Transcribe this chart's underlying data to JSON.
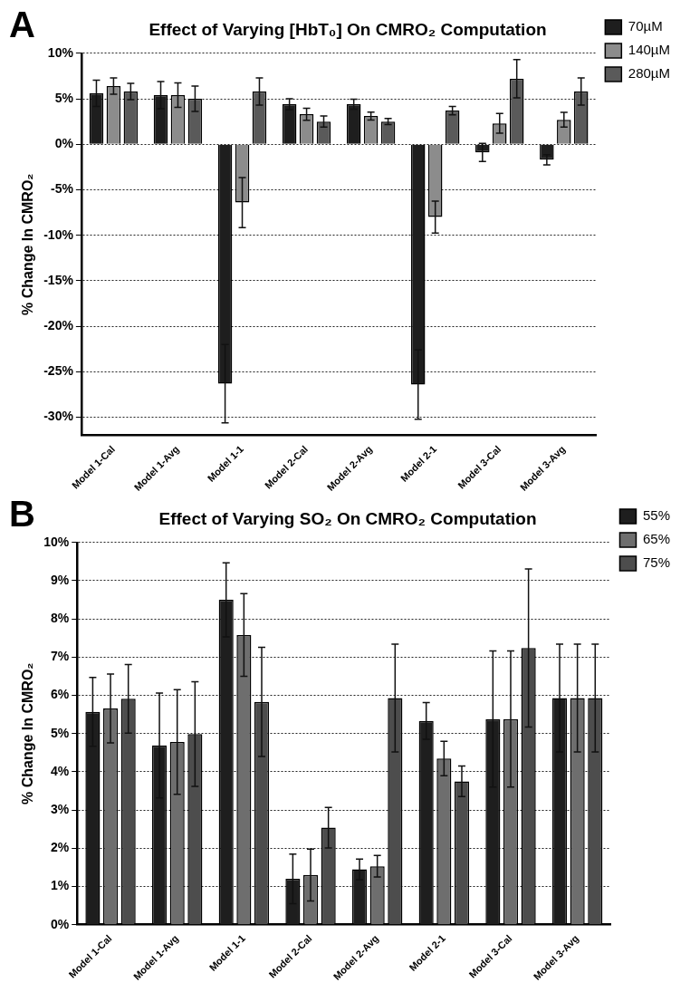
{
  "chart_data": [
    {
      "type": "bar",
      "title": "Effect of Varying [HbT₀] On CMRO₂ Computation",
      "ylabel": "% Change In CMRO₂",
      "annotations": [
        "A"
      ],
      "categories": [
        "Model 1-Cal",
        "Model 1-Avg",
        "Model 1-1",
        "Model 2-Cal",
        "Model 2-Avg",
        "Model 2-1",
        "Model 3-Cal",
        "Model 3-Avg"
      ],
      "series": [
        {
          "name": "70µM",
          "color": "#1e1e1e",
          "values": [
            5.6,
            5.4,
            -26.3,
            4.4,
            4.4,
            -26.4,
            -0.9,
            -1.7
          ],
          "errors": [
            1.45,
            1.5,
            4.3,
            0.6,
            0.55,
            3.8,
            1.0,
            0.56
          ]
        },
        {
          "name": "140µM",
          "color": "#8c8c8c",
          "values": [
            6.4,
            5.4,
            -6.4,
            3.3,
            3.1,
            -8.0,
            2.3,
            2.7
          ],
          "errors": [
            0.9,
            1.35,
            2.75,
            0.65,
            0.43,
            1.75,
            1.08,
            0.8
          ]
        },
        {
          "name": "280µM",
          "color": "#5a5a5a",
          "values": [
            5.8,
            5.0,
            5.8,
            2.5,
            2.5,
            3.7,
            7.2,
            5.8
          ],
          "errors": [
            0.9,
            1.4,
            1.5,
            0.6,
            0.33,
            0.46,
            2.1,
            1.5
          ]
        }
      ],
      "ylim": [
        -32,
        10
      ],
      "yticks": [
        {
          "value": -30,
          "label": "-30%"
        },
        {
          "value": -25,
          "label": "-25%"
        },
        {
          "value": -20,
          "label": "-20%"
        },
        {
          "value": -15,
          "label": "-15%"
        },
        {
          "value": -10,
          "label": "-10%"
        },
        {
          "value": -5,
          "label": "-5%"
        },
        {
          "value": 0,
          "label": "0%"
        },
        {
          "value": 5,
          "label": "5%"
        },
        {
          "value": 10,
          "label": "10%"
        }
      ],
      "grid": "y",
      "legend": "top right"
    },
    {
      "type": "bar",
      "title": "Effect of Varying SO₂ On CMRO₂ Computation",
      "ylabel": "% Change In CMRO₂",
      "annotations": [
        "B"
      ],
      "categories": [
        "Model 1-Cal",
        "Model 1-Avg",
        "Model 1-1",
        "Model 2-Cal",
        "Model 2-Avg",
        "Model 2-1",
        "Model 3-Cal",
        "Model 3-Avg"
      ],
      "series": [
        {
          "name": "55%",
          "color": "#1e1e1e",
          "values": [
            5.57,
            4.69,
            8.5,
            1.2,
            1.45,
            5.33,
            5.38,
            5.93
          ],
          "errors": [
            0.9,
            1.37,
            0.97,
            0.65,
            0.27,
            0.48,
            1.78,
            1.41
          ]
        },
        {
          "name": "65%",
          "color": "#6e6e6e",
          "values": [
            5.66,
            4.78,
            7.58,
            1.3,
            1.53,
            4.35,
            5.38,
            5.93
          ],
          "errors": [
            0.9,
            1.37,
            1.08,
            0.68,
            0.28,
            0.45,
            1.78,
            1.41
          ]
        },
        {
          "name": "75%",
          "color": "#4d4d4d",
          "values": [
            5.91,
            4.99,
            5.83,
            2.54,
            5.93,
            3.75,
            7.24,
            5.93
          ],
          "errors": [
            0.9,
            1.37,
            1.43,
            0.53,
            1.41,
            0.4,
            2.07,
            1.41
          ]
        }
      ],
      "ylim": [
        0,
        10
      ],
      "yticks": [
        {
          "value": 0,
          "label": "0%"
        },
        {
          "value": 1,
          "label": "1%"
        },
        {
          "value": 2,
          "label": "2%"
        },
        {
          "value": 3,
          "label": "3%"
        },
        {
          "value": 4,
          "label": "4%"
        },
        {
          "value": 5,
          "label": "5%"
        },
        {
          "value": 6,
          "label": "6%"
        },
        {
          "value": 7,
          "label": "7%"
        },
        {
          "value": 8,
          "label": "8%"
        },
        {
          "value": 9,
          "label": "9%"
        },
        {
          "value": 10,
          "label": "10%"
        }
      ],
      "grid": "y",
      "legend": "top right"
    }
  ]
}
